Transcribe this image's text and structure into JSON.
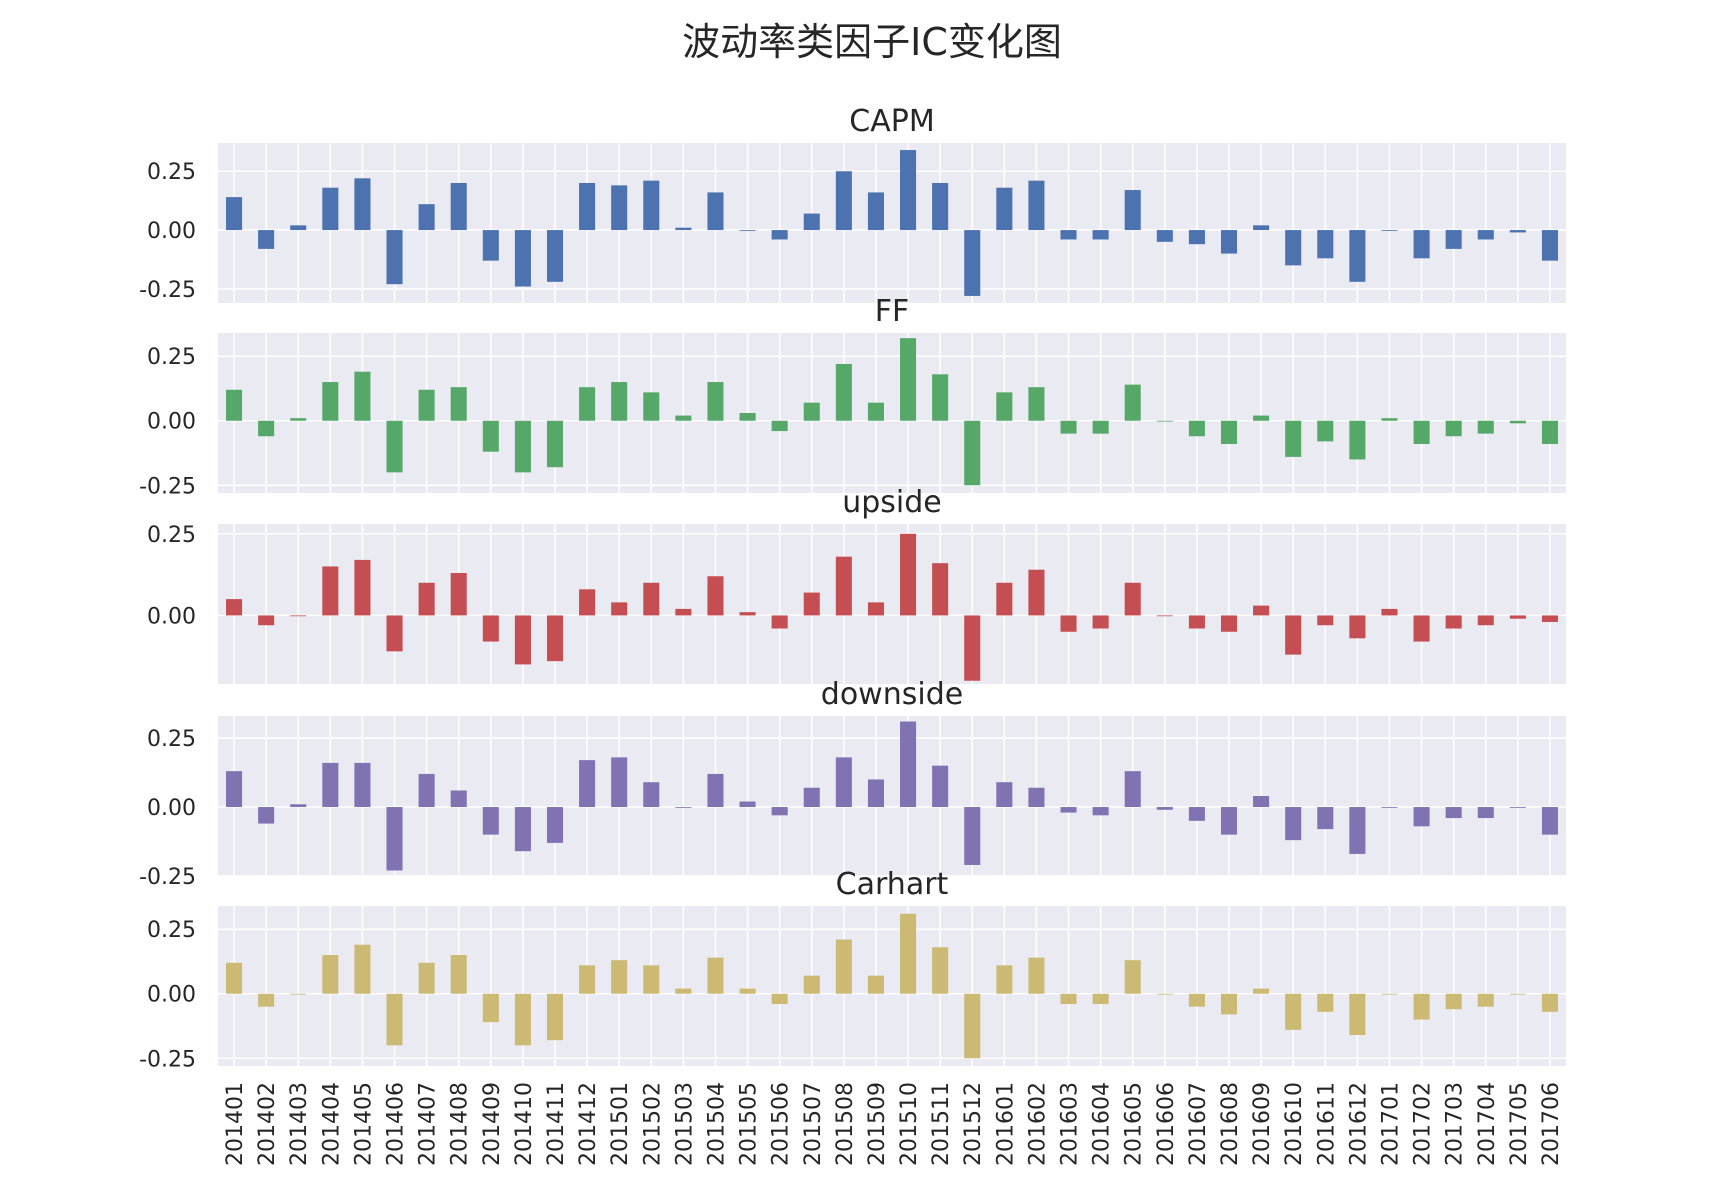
{
  "figure": {
    "title": "波动率类因子IC变化图"
  },
  "chart_data": {
    "type": "bar",
    "layout": "stacked-subplots-shared-x",
    "background": "#eaeaf2",
    "grid": true,
    "x_tick_rotation": "vertical",
    "categories": [
      "201401",
      "201402",
      "201403",
      "201404",
      "201405",
      "201406",
      "201407",
      "201408",
      "201409",
      "201410",
      "201411",
      "201412",
      "201501",
      "201502",
      "201503",
      "201504",
      "201505",
      "201506",
      "201507",
      "201508",
      "201509",
      "201510",
      "201511",
      "201512",
      "201601",
      "201602",
      "201603",
      "201604",
      "201605",
      "201606",
      "201607",
      "201608",
      "201609",
      "201610",
      "201611",
      "201612",
      "201701",
      "201702",
      "201703",
      "201704",
      "201705",
      "201706"
    ],
    "panels": [
      {
        "title": "CAPM",
        "color": "#4c72b0",
        "ylim": [
          -0.31,
          0.37
        ],
        "yticks": [
          0.25,
          0.0,
          -0.25
        ],
        "ytick_labels": [
          "0.25",
          "0.00",
          "-0.25"
        ],
        "values": [
          0.14,
          -0.08,
          0.02,
          0.18,
          0.22,
          -0.23,
          0.11,
          0.2,
          -0.13,
          -0.24,
          -0.22,
          0.2,
          0.19,
          0.21,
          0.01,
          0.16,
          0.0,
          -0.04,
          0.07,
          0.25,
          0.16,
          0.34,
          0.2,
          -0.28,
          0.18,
          0.21,
          -0.04,
          -0.04,
          0.17,
          -0.05,
          -0.06,
          -0.1,
          0.02,
          -0.15,
          -0.12,
          -0.22,
          0.0,
          -0.12,
          -0.08,
          -0.04,
          -0.01,
          -0.13
        ]
      },
      {
        "title": "FF",
        "color": "#55a868",
        "ylim": [
          -0.28,
          0.34
        ],
        "yticks": [
          0.25,
          0.0,
          -0.25
        ],
        "ytick_labels": [
          "0.25",
          "0.00",
          "-0.25"
        ],
        "values": [
          0.12,
          -0.06,
          0.01,
          0.15,
          0.19,
          -0.2,
          0.12,
          0.13,
          -0.12,
          -0.2,
          -0.18,
          0.13,
          0.15,
          0.11,
          0.02,
          0.15,
          0.03,
          -0.04,
          0.07,
          0.22,
          0.07,
          0.32,
          0.18,
          -0.25,
          0.11,
          0.13,
          -0.05,
          -0.05,
          0.14,
          0.0,
          -0.06,
          -0.09,
          0.02,
          -0.14,
          -0.08,
          -0.15,
          0.01,
          -0.09,
          -0.06,
          -0.05,
          -0.01,
          -0.09
        ]
      },
      {
        "title": "upside",
        "color": "#c44e52",
        "ylim": [
          -0.21,
          0.28
        ],
        "yticks": [
          0.25,
          0.0
        ],
        "ytick_labels": [
          "0.25",
          "0.00"
        ],
        "values": [
          0.05,
          -0.03,
          0.0,
          0.15,
          0.17,
          -0.11,
          0.1,
          0.13,
          -0.08,
          -0.15,
          -0.14,
          0.08,
          0.04,
          0.1,
          0.02,
          0.12,
          0.01,
          -0.04,
          0.07,
          0.18,
          0.04,
          0.25,
          0.16,
          -0.2,
          0.1,
          0.14,
          -0.05,
          -0.04,
          0.1,
          0.0,
          -0.04,
          -0.05,
          0.03,
          -0.12,
          -0.03,
          -0.07,
          0.02,
          -0.08,
          -0.04,
          -0.03,
          -0.01,
          -0.02
        ]
      },
      {
        "title": "downside",
        "color": "#8172b2",
        "ylim": [
          -0.25,
          0.33
        ],
        "yticks": [
          0.25,
          0.0,
          -0.25
        ],
        "ytick_labels": [
          "0.25",
          "0.00",
          "-0.25"
        ],
        "values": [
          0.13,
          -0.06,
          0.01,
          0.16,
          0.16,
          -0.23,
          0.12,
          0.06,
          -0.1,
          -0.16,
          -0.13,
          0.17,
          0.18,
          0.09,
          0.0,
          0.12,
          0.02,
          -0.03,
          0.07,
          0.18,
          0.1,
          0.31,
          0.15,
          -0.21,
          0.09,
          0.07,
          -0.02,
          -0.03,
          0.13,
          -0.01,
          -0.05,
          -0.1,
          0.04,
          -0.12,
          -0.08,
          -0.17,
          0.0,
          -0.07,
          -0.04,
          -0.04,
          0.0,
          -0.1
        ]
      },
      {
        "title": "Carhart",
        "color": "#ccb974",
        "ylim": [
          -0.28,
          0.34
        ],
        "yticks": [
          0.25,
          0.0,
          -0.25
        ],
        "ytick_labels": [
          "0.25",
          "0.00",
          "-0.25"
        ],
        "values": [
          0.12,
          -0.05,
          0.0,
          0.15,
          0.19,
          -0.2,
          0.12,
          0.15,
          -0.11,
          -0.2,
          -0.18,
          0.11,
          0.13,
          0.11,
          0.02,
          0.14,
          0.02,
          -0.04,
          0.07,
          0.21,
          0.07,
          0.31,
          0.18,
          -0.25,
          0.11,
          0.14,
          -0.04,
          -0.04,
          0.13,
          0.0,
          -0.05,
          -0.08,
          0.02,
          -0.14,
          -0.07,
          -0.16,
          0.0,
          -0.1,
          -0.06,
          -0.05,
          0.0,
          -0.07
        ]
      }
    ]
  }
}
